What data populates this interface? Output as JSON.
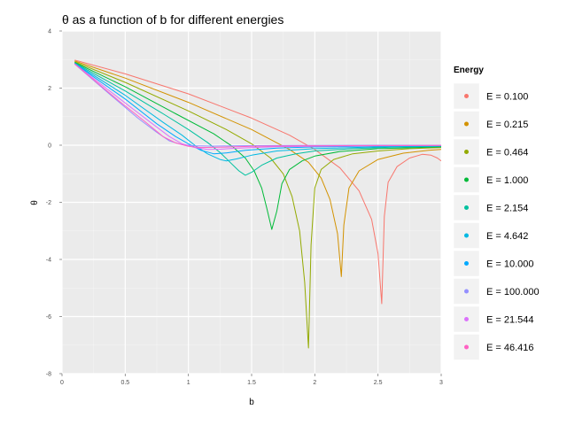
{
  "chart_data": {
    "type": "line",
    "title": "θ as a function of b for different energies",
    "xlabel": "b",
    "ylabel": "θ",
    "xlim": [
      0,
      3
    ],
    "ylim": [
      -8,
      4
    ],
    "x_ticks": [
      "0",
      "0.5",
      "1",
      "1.5",
      "2",
      "2.5",
      "3"
    ],
    "y_ticks": [
      "4",
      "2",
      "0",
      "-2",
      "-4",
      "-6",
      "-8"
    ],
    "grid": true,
    "legend": {
      "title": "Energy",
      "position": "right"
    },
    "series": [
      {
        "name": "E =  0.100",
        "color": "#F8766D",
        "points": [
          [
            0.1,
            2.98
          ],
          [
            0.5,
            2.5
          ],
          [
            1.0,
            1.8
          ],
          [
            1.5,
            0.95
          ],
          [
            1.8,
            0.35
          ],
          [
            2.0,
            -0.15
          ],
          [
            2.2,
            -0.8
          ],
          [
            2.35,
            -1.6
          ],
          [
            2.45,
            -2.6
          ],
          [
            2.5,
            -3.8
          ],
          [
            2.53,
            -5.55
          ],
          [
            2.55,
            -2.5
          ],
          [
            2.58,
            -1.3
          ],
          [
            2.65,
            -0.75
          ],
          [
            2.75,
            -0.45
          ],
          [
            2.85,
            -0.32
          ],
          [
            2.92,
            -0.35
          ],
          [
            2.97,
            -0.45
          ],
          [
            3.0,
            -0.55
          ]
        ]
      },
      {
        "name": "E =  0.215",
        "color": "#D39200",
        "points": [
          [
            0.1,
            2.95
          ],
          [
            0.5,
            2.35
          ],
          [
            1.0,
            1.5
          ],
          [
            1.5,
            0.55
          ],
          [
            1.8,
            -0.15
          ],
          [
            1.95,
            -0.6
          ],
          [
            2.05,
            -1.15
          ],
          [
            2.12,
            -1.9
          ],
          [
            2.18,
            -3.1
          ],
          [
            2.21,
            -4.6
          ],
          [
            2.23,
            -2.8
          ],
          [
            2.27,
            -1.5
          ],
          [
            2.35,
            -0.9
          ],
          [
            2.5,
            -0.5
          ],
          [
            2.7,
            -0.28
          ],
          [
            2.9,
            -0.18
          ],
          [
            3.0,
            -0.15
          ]
        ]
      },
      {
        "name": "E =  0.464",
        "color": "#93AA00",
        "points": [
          [
            0.1,
            2.92
          ],
          [
            0.5,
            2.2
          ],
          [
            1.0,
            1.2
          ],
          [
            1.3,
            0.55
          ],
          [
            1.5,
            0.05
          ],
          [
            1.65,
            -0.45
          ],
          [
            1.75,
            -1.0
          ],
          [
            1.82,
            -1.8
          ],
          [
            1.88,
            -3.0
          ],
          [
            1.92,
            -4.8
          ],
          [
            1.95,
            -7.1
          ],
          [
            1.97,
            -3.5
          ],
          [
            2.0,
            -1.5
          ],
          [
            2.05,
            -0.85
          ],
          [
            2.15,
            -0.5
          ],
          [
            2.3,
            -0.3
          ],
          [
            2.5,
            -0.2
          ],
          [
            2.75,
            -0.12
          ],
          [
            3.0,
            -0.08
          ]
        ]
      },
      {
        "name": "E =  1.000",
        "color": "#00BA38",
        "points": [
          [
            0.1,
            2.9
          ],
          [
            0.5,
            2.05
          ],
          [
            0.9,
            1.1
          ],
          [
            1.2,
            0.4
          ],
          [
            1.35,
            -0.05
          ],
          [
            1.45,
            -0.45
          ],
          [
            1.52,
            -0.9
          ],
          [
            1.58,
            -1.5
          ],
          [
            1.62,
            -2.2
          ],
          [
            1.66,
            -2.95
          ],
          [
            1.7,
            -2.3
          ],
          [
            1.74,
            -1.35
          ],
          [
            1.8,
            -0.85
          ],
          [
            1.9,
            -0.55
          ],
          [
            2.0,
            -0.38
          ],
          [
            2.2,
            -0.22
          ],
          [
            2.5,
            -0.12
          ],
          [
            3.0,
            -0.06
          ]
        ]
      },
      {
        "name": "E =  2.154",
        "color": "#00C19F",
        "points": [
          [
            0.1,
            2.88
          ],
          [
            0.5,
            1.9
          ],
          [
            0.8,
            1.1
          ],
          [
            1.0,
            0.55
          ],
          [
            1.15,
            0.1
          ],
          [
            1.25,
            -0.25
          ],
          [
            1.33,
            -0.6
          ],
          [
            1.4,
            -0.9
          ],
          [
            1.45,
            -1.05
          ],
          [
            1.5,
            -0.95
          ],
          [
            1.58,
            -0.7
          ],
          [
            1.7,
            -0.45
          ],
          [
            1.85,
            -0.3
          ],
          [
            2.0,
            -0.2
          ],
          [
            2.3,
            -0.12
          ],
          [
            2.6,
            -0.07
          ],
          [
            3.0,
            -0.04
          ]
        ]
      },
      {
        "name": "E =  4.642",
        "color": "#00B9E3",
        "points": [
          [
            0.1,
            2.87
          ],
          [
            0.5,
            1.75
          ],
          [
            0.8,
            0.8
          ],
          [
            0.95,
            0.35
          ],
          [
            1.05,
            0.0
          ],
          [
            1.15,
            -0.3
          ],
          [
            1.25,
            -0.5
          ],
          [
            1.3,
            -0.55
          ],
          [
            1.38,
            -0.48
          ],
          [
            1.5,
            -0.35
          ],
          [
            1.7,
            -0.2
          ],
          [
            2.0,
            -0.12
          ],
          [
            2.5,
            -0.06
          ],
          [
            3.0,
            -0.03
          ]
        ]
      },
      {
        "name": "E = 10.000",
        "color": "#00A9FF",
        "points": [
          [
            0.1,
            2.86
          ],
          [
            0.5,
            1.62
          ],
          [
            0.75,
            0.75
          ],
          [
            0.9,
            0.3
          ],
          [
            1.0,
            0.05
          ],
          [
            1.1,
            -0.18
          ],
          [
            1.2,
            -0.3
          ],
          [
            1.3,
            -0.27
          ],
          [
            1.45,
            -0.18
          ],
          [
            1.7,
            -0.1
          ],
          [
            2.0,
            -0.06
          ],
          [
            2.5,
            -0.03
          ],
          [
            3.0,
            -0.02
          ]
        ]
      },
      {
        "name": "E = 100.000",
        "color": "#9590FF",
        "points": [
          [
            0.1,
            2.84
          ],
          [
            0.4,
            1.7
          ],
          [
            0.6,
            0.95
          ],
          [
            0.75,
            0.45
          ],
          [
            0.85,
            0.15
          ],
          [
            0.95,
            0.02
          ],
          [
            1.05,
            -0.02
          ],
          [
            1.2,
            -0.03
          ],
          [
            1.4,
            -0.02
          ],
          [
            1.8,
            -0.01
          ],
          [
            2.5,
            0.0
          ],
          [
            3.0,
            0.0
          ]
        ]
      },
      {
        "name": "E = 21.544",
        "color": "#DB72FB",
        "points": [
          [
            0.1,
            2.85
          ],
          [
            0.5,
            1.48
          ],
          [
            0.7,
            0.8
          ],
          [
            0.85,
            0.3
          ],
          [
            0.95,
            0.05
          ],
          [
            1.05,
            -0.08
          ],
          [
            1.15,
            -0.15
          ],
          [
            1.25,
            -0.14
          ],
          [
            1.4,
            -0.1
          ],
          [
            1.7,
            -0.05
          ],
          [
            2.2,
            -0.03
          ],
          [
            3.0,
            -0.01
          ]
        ]
      },
      {
        "name": "E = 46.416",
        "color": "#FF61C3",
        "points": [
          [
            0.1,
            2.85
          ],
          [
            0.45,
            1.55
          ],
          [
            0.65,
            0.85
          ],
          [
            0.8,
            0.3
          ],
          [
            0.9,
            0.08
          ],
          [
            1.0,
            -0.04
          ],
          [
            1.1,
            -0.08
          ],
          [
            1.25,
            -0.07
          ],
          [
            1.5,
            -0.04
          ],
          [
            2.0,
            -0.02
          ],
          [
            3.0,
            -0.01
          ]
        ]
      }
    ]
  }
}
